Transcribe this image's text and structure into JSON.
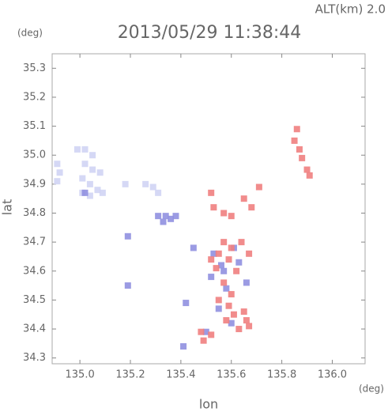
{
  "chart_data": {
    "type": "scatter",
    "altitude_label": "ALT(km) 2.0",
    "title": "2013/05/29 11:38:44",
    "y_unit": "(deg)",
    "x_unit": "(deg)",
    "xlabel": "lon",
    "ylabel": "lat",
    "xlim": [
      134.89,
      136.13
    ],
    "ylim": [
      34.28,
      35.35
    ],
    "xticks": [
      {
        "value": 135.0,
        "label": "135.0"
      },
      135.2,
      135.4,
      135.6,
      135.8,
      {
        "value": 136.0,
        "label": "136.0"
      }
    ],
    "yticks": [
      34.3,
      34.4,
      34.5,
      34.6,
      34.7,
      34.8,
      34.9,
      {
        "value": 35.0,
        "label": "35.0"
      },
      35.1,
      35.2,
      35.3
    ],
    "series": [
      {
        "color": "#d0d4f4",
        "x": [
          134.99,
          135.02,
          135.05,
          135.02,
          135.05,
          135.08,
          135.01,
          135.04,
          135.07,
          135.01,
          135.04,
          135.09,
          134.91,
          134.92,
          134.91,
          135.26,
          135.29,
          135.31,
          135.18
        ],
        "y": [
          35.02,
          35.02,
          35.0,
          34.97,
          34.95,
          34.94,
          34.92,
          34.9,
          34.88,
          34.87,
          34.86,
          34.87,
          34.97,
          34.94,
          34.91,
          34.9,
          34.89,
          34.87,
          34.9
        ]
      },
      {
        "color": "#9090e0",
        "x": [
          135.31,
          135.34,
          135.36,
          135.38,
          135.33,
          135.19,
          135.19,
          135.42,
          135.41,
          135.53,
          135.56,
          135.52,
          135.58,
          135.6,
          135.55,
          135.63,
          135.66,
          135.5,
          135.57,
          135.61,
          135.45,
          135.02
        ],
        "y": [
          34.79,
          34.79,
          34.78,
          34.79,
          34.77,
          34.72,
          34.55,
          34.49,
          34.34,
          34.66,
          34.62,
          34.58,
          34.54,
          34.42,
          34.47,
          34.63,
          34.56,
          34.39,
          34.6,
          34.68,
          34.68,
          34.87
        ]
      },
      {
        "color": "#f08080",
        "x": [
          135.86,
          135.85,
          135.87,
          135.88,
          135.9,
          135.91,
          135.52,
          135.53,
          135.57,
          135.6,
          135.65,
          135.68,
          135.57,
          135.6,
          135.55,
          135.52,
          135.59,
          135.62,
          135.57,
          135.6,
          135.59,
          135.61,
          135.58,
          135.65,
          135.66,
          135.67,
          135.63,
          135.54,
          135.48,
          135.52,
          135.49,
          135.55,
          135.71,
          135.64,
          135.67
        ],
        "y": [
          35.09,
          35.05,
          35.02,
          34.99,
          34.95,
          34.93,
          34.87,
          34.82,
          34.8,
          34.79,
          34.85,
          34.82,
          34.7,
          34.68,
          34.66,
          34.64,
          34.64,
          34.6,
          34.56,
          34.52,
          34.48,
          34.45,
          34.43,
          34.46,
          34.43,
          34.41,
          34.4,
          34.61,
          34.39,
          34.38,
          34.36,
          34.5,
          34.89,
          34.7,
          34.66
        ]
      }
    ]
  }
}
